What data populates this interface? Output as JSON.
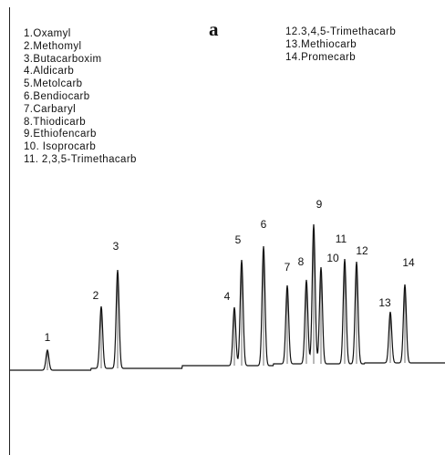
{
  "chart_data": {
    "type": "line",
    "panel_label": "a",
    "title": "",
    "xlabel": "",
    "ylabel": "",
    "grid": false,
    "legend_placement": "top",
    "legend_left": [
      "1.Oxamyl",
      "2.Methomyl",
      "3.Butacarboxim",
      "4.Aldicarb",
      "5.Metolcarb",
      "6.Bendiocarb",
      "7.Carbaryl",
      "8.Thiodicarb",
      "9.Ethiofencarb",
      "10. Isoprocarb",
      "11. 2,3,5-Trimethacarb"
    ],
    "legend_right": [
      "12.3,4,5-Trimethacarb",
      "13.Methiocarb",
      "14.Promecarb"
    ],
    "peaks": [
      {
        "label": "1",
        "x": 52,
        "height": 22
      },
      {
        "label": "2",
        "x": 111,
        "height": 68
      },
      {
        "label": "3",
        "x": 129,
        "height": 108
      },
      {
        "label": "4",
        "x": 257,
        "height": 64
      },
      {
        "label": "5",
        "x": 265,
        "height": 116
      },
      {
        "label": "6",
        "x": 289,
        "height": 131
      },
      {
        "label": "7",
        "x": 315,
        "height": 86
      },
      {
        "label": "8",
        "x": 336,
        "height": 92
      },
      {
        "label": "9",
        "x": 344,
        "height": 153
      },
      {
        "label": "10",
        "x": 352,
        "height": 106
      },
      {
        "label": "11",
        "x": 378,
        "height": 115
      },
      {
        "label": "12",
        "x": 391,
        "height": 112
      },
      {
        "label": "13",
        "x": 428,
        "height": 56
      },
      {
        "label": "14",
        "x": 444,
        "height": 86
      }
    ]
  }
}
